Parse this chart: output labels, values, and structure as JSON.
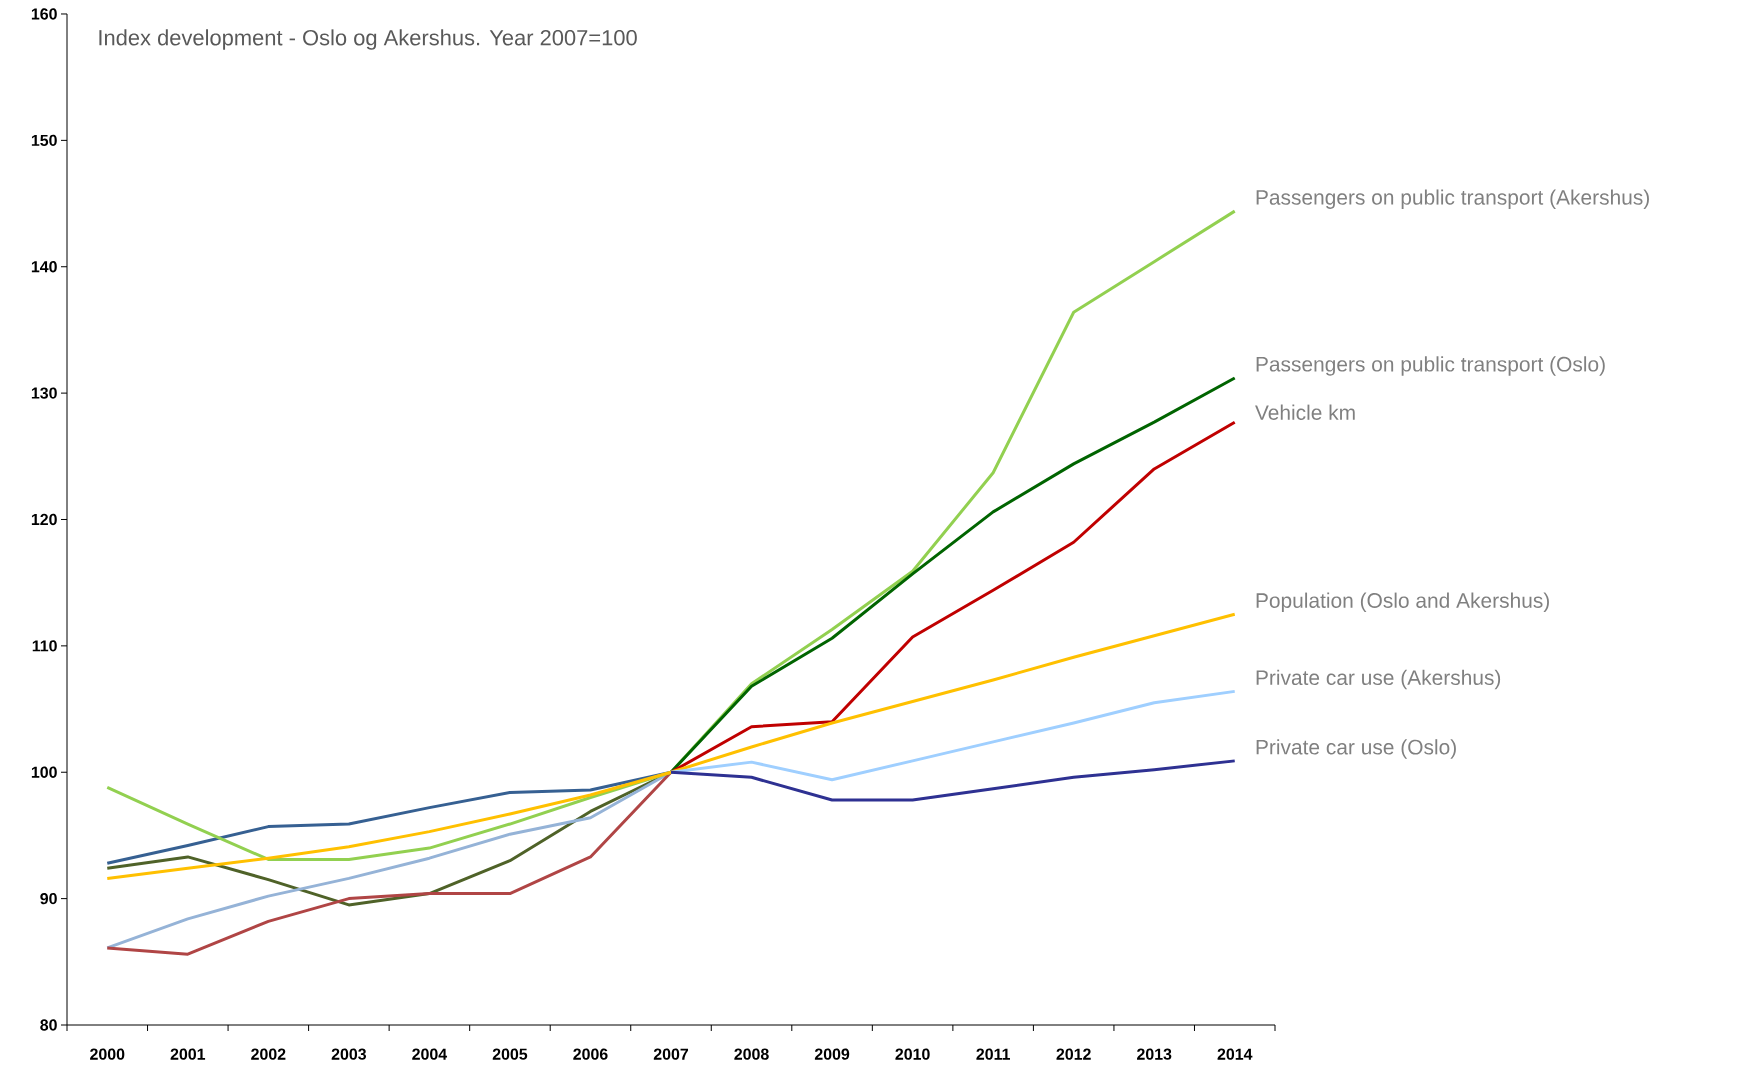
{
  "chart_data": {
    "type": "line",
    "title": "Index development - Oslo og Akershus. Year 2007=100",
    "categories": [
      "2000",
      "2001",
      "2002",
      "2003",
      "2004",
      "2005",
      "2006",
      "2007",
      "2008",
      "2009",
      "2010",
      "2011",
      "2012",
      "2013",
      "2014"
    ],
    "ylim": [
      80,
      160
    ],
    "yticks": [
      80,
      90,
      100,
      110,
      120,
      130,
      140,
      150,
      160
    ],
    "grid": false,
    "marker": "none",
    "line_style": "solid",
    "series": [
      {
        "color": "#366092",
        "values": [
          92.8,
          94.2,
          95.7,
          95.9,
          97.2,
          98.4,
          98.6,
          100,
          null,
          null,
          null,
          null,
          null,
          null,
          null
        ]
      },
      {
        "color": "#4f6228",
        "values": [
          92.4,
          93.3,
          91.5,
          89.5,
          90.4,
          93.0,
          96.9,
          100,
          null,
          null,
          null,
          null,
          null,
          null,
          null
        ]
      },
      {
        "color": "#95b3d7",
        "values": [
          86.1,
          88.4,
          90.2,
          91.6,
          93.2,
          95.1,
          96.4,
          100,
          null,
          null,
          null,
          null,
          null,
          null,
          null
        ]
      },
      {
        "color": "#b04545",
        "values": [
          86.1,
          85.6,
          88.2,
          90.0,
          90.4,
          90.4,
          93.3,
          100,
          null,
          null,
          null,
          null,
          null,
          null,
          null
        ]
      },
      {
        "name": "Passengers on public transport (Akershus)",
        "color": "#92d050",
        "values": [
          98.8,
          95.9,
          93.1,
          93.1,
          94.0,
          95.9,
          98.0,
          100,
          107.0,
          111.3,
          115.9,
          123.7,
          136.4,
          140.4,
          144.4
        ]
      },
      {
        "name": "Passengers on public transport (Oslo)",
        "color": "#006400",
        "values": [
          null,
          null,
          null,
          null,
          null,
          null,
          null,
          100,
          106.8,
          110.6,
          115.7,
          120.6,
          124.4,
          127.7,
          131.2
        ]
      },
      {
        "name": "Vehicle km",
        "color": "#c00000",
        "values": [
          null,
          null,
          null,
          null,
          null,
          null,
          null,
          100,
          103.6,
          104.0,
          110.7,
          114.4,
          118.2,
          124.0,
          127.7
        ]
      },
      {
        "name": "Population (Oslo and Akershus)",
        "color": "#ffc000",
        "values": [
          91.6,
          92.4,
          93.2,
          94.1,
          95.3,
          96.7,
          98.2,
          100,
          102.0,
          103.9,
          105.6,
          107.3,
          109.1,
          110.8,
          112.5
        ]
      },
      {
        "name": "Private car use (Akershus)",
        "color": "#9fcfff",
        "values": [
          null,
          null,
          null,
          null,
          null,
          null,
          null,
          100,
          100.8,
          99.4,
          100.9,
          102.4,
          103.9,
          105.5,
          106.4
        ]
      },
      {
        "name": "Private car use (Oslo)",
        "color": "#2e3192",
        "values": [
          null,
          null,
          null,
          null,
          null,
          null,
          null,
          100,
          99.6,
          97.8,
          97.8,
          98.7,
          99.6,
          100.2,
          100.9
        ]
      }
    ]
  }
}
